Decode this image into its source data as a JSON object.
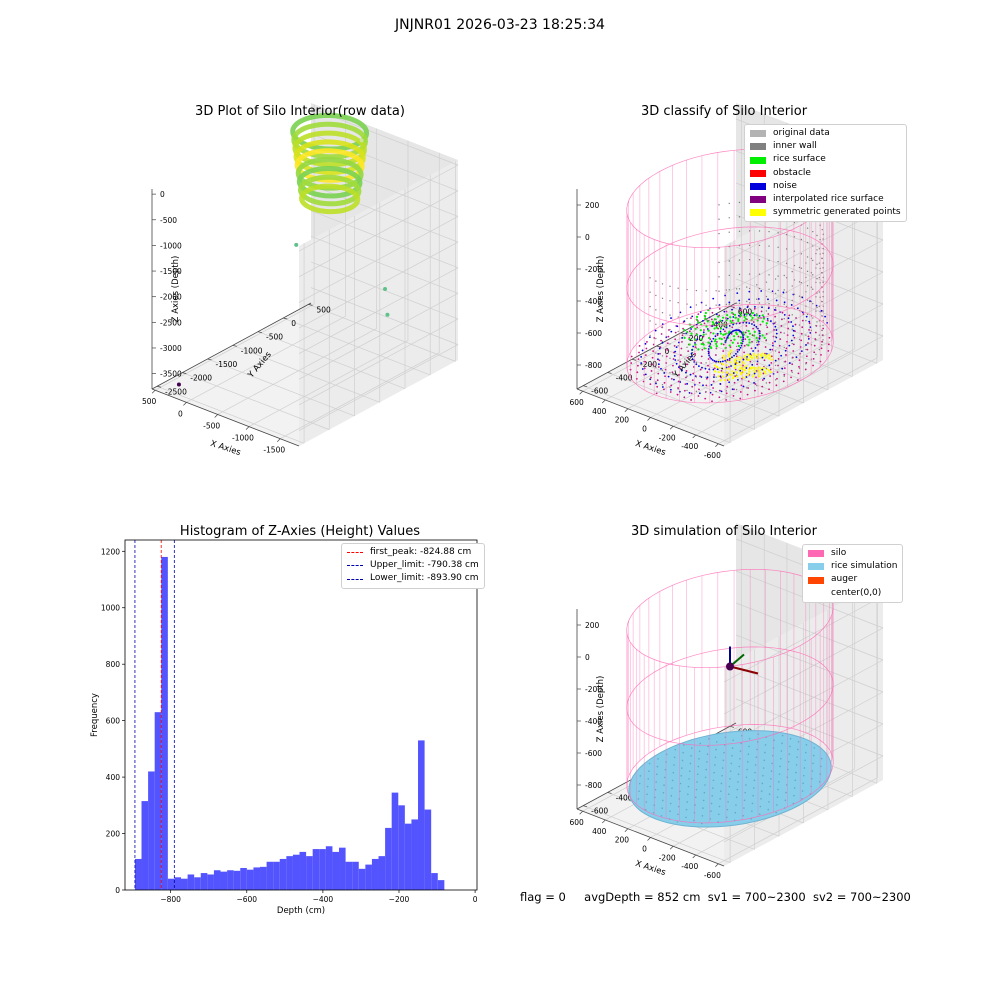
{
  "suptitle": "JNJNR01 2026-03-23 18:25:34",
  "status": {
    "flag": "flag = 0",
    "avg_depth": "avgDepth = 852 cm",
    "sv1": "sv1 = 700~2300",
    "sv2": "sv2 = 700~2300"
  },
  "chart_data": [
    {
      "id": "raw",
      "type": "scatter",
      "projection": "3d",
      "title": "3D Plot of Silo Interior(row data)",
      "xlabel": "X Axies",
      "ylabel": "Y Axies",
      "zlabel": "Z Axies (Depth)",
      "xticks": [
        -1500,
        -1000,
        -500,
        0,
        500
      ],
      "yticks": [
        -2500,
        -2000,
        -1500,
        -1000,
        -500,
        0,
        500
      ],
      "zticks": [
        -3500,
        -3000,
        -2500,
        -2000,
        -1500,
        -1000,
        -500,
        0
      ],
      "xlim": [
        -1800,
        550
      ],
      "ylim": [
        -2600,
        550
      ],
      "zlim": [
        -3800,
        100
      ],
      "colormap": "viridis",
      "ring": {
        "center_x": 50,
        "center_y": 300,
        "radius": 460,
        "z_min": -1400,
        "z_max": -100
      },
      "outliers": [
        {
          "x": -1600,
          "y": -600,
          "z": -2400,
          "color": "#5ec28a"
        },
        {
          "x": -1400,
          "y": -400,
          "z": -2100,
          "color": "#5ec28a"
        },
        {
          "x": 100,
          "y": -300,
          "z": -2000,
          "color": "#5ec28a"
        },
        {
          "x": -300,
          "y": 500,
          "z": -200,
          "color": "#cfe3a0"
        },
        {
          "x": 200,
          "y": -2500,
          "z": -3600,
          "color": "#440154"
        }
      ]
    },
    {
      "id": "classify",
      "type": "scatter",
      "projection": "3d",
      "title": "3D classify of Silo Interior",
      "xlabel": "X Axies",
      "ylabel": "Y Axies",
      "zlabel": "Z Axies (Depth)",
      "xticks": [
        -600,
        -400,
        -200,
        0,
        200,
        400,
        600
      ],
      "yticks": [
        -600,
        -400,
        -200,
        0,
        200,
        400,
        600
      ],
      "zticks": [
        -800,
        -600,
        -400,
        -200,
        0,
        200
      ],
      "xlim": [
        -650,
        650
      ],
      "ylim": [
        -650,
        650
      ],
      "zlim": [
        -950,
        300
      ],
      "legend": [
        {
          "label": "original data",
          "color": "#b3b3b3"
        },
        {
          "label": "inner wall",
          "color": "#808080"
        },
        {
          "label": "rice surface",
          "color": "#00ee00"
        },
        {
          "label": "obstacle",
          "color": "#ff0000"
        },
        {
          "label": "noise",
          "color": "#0000dd"
        },
        {
          "label": "interpolated rice surface",
          "color": "#800080"
        },
        {
          "label": "symmetric generated points",
          "color": "#ffff00"
        }
      ],
      "silo": {
        "radius": 620,
        "z_top": 150,
        "z_bottom": -820,
        "color": "#ff69b4"
      }
    },
    {
      "id": "histogram",
      "type": "bar",
      "title": "Histogram of Z-Axies (Height) Values",
      "xlabel": "Depth (cm)",
      "ylabel": "Frequency",
      "xlim": [
        -920,
        5
      ],
      "ylim": [
        0,
        1240
      ],
      "xticks": [
        -800,
        -600,
        -400,
        -200,
        0
      ],
      "yticks": [
        0,
        200,
        400,
        600,
        800,
        1000,
        1200
      ],
      "bar_color": "#4b4bff",
      "bin_start": -893.9,
      "bin_width": 17.3,
      "values": [
        110,
        315,
        420,
        630,
        1180,
        40,
        45,
        40,
        55,
        45,
        60,
        55,
        70,
        65,
        70,
        68,
        78,
        72,
        80,
        82,
        100,
        100,
        110,
        120,
        125,
        135,
        120,
        145,
        145,
        155,
        135,
        150,
        100,
        100,
        75,
        90,
        110,
        120,
        220,
        345,
        300,
        235,
        250,
        530,
        285,
        60,
        35
      ],
      "vlines": [
        {
          "label": "first_peak: -824.88 cm",
          "x": -824.88,
          "color": "#ff0000"
        },
        {
          "label": "Upper_limit: -790.38 cm",
          "x": -790.38,
          "color": "#0000aa"
        },
        {
          "label": "Lower_limit: -893.90 cm",
          "x": -893.9,
          "color": "#0000aa"
        }
      ]
    },
    {
      "id": "simulation",
      "type": "scatter",
      "projection": "3d",
      "title": "3D simulation of Silo Interior",
      "xlabel": "X Axies",
      "ylabel": "Y Axies",
      "zlabel": "Z Axies (Depth)",
      "xticks": [
        -600,
        -400,
        -200,
        0,
        200,
        400,
        600
      ],
      "yticks": [
        -600,
        -400,
        -200,
        0,
        200,
        400,
        600
      ],
      "zticks": [
        -800,
        -600,
        -400,
        -200,
        0,
        200
      ],
      "xlim": [
        -650,
        650
      ],
      "ylim": [
        -650,
        650
      ],
      "zlim": [
        -950,
        300
      ],
      "legend": [
        {
          "label": "silo",
          "color": "#ff69b4"
        },
        {
          "label": "rice simulation",
          "color": "#87ceeb"
        },
        {
          "label": "auger",
          "color": "#ff4500"
        },
        {
          "label": "center(0,0)",
          "color": "#ffffff"
        }
      ],
      "silo": {
        "radius": 620,
        "z_top": 150,
        "z_bottom": -820,
        "color": "#ff69b4"
      },
      "rice_depth": -852
    }
  ]
}
